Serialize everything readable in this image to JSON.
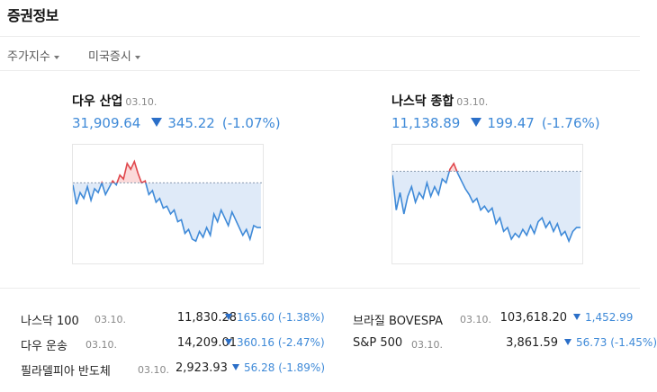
{
  "header": {
    "title": "증권정보"
  },
  "tabs": [
    {
      "label": "주가지수"
    },
    {
      "label": "미국증시"
    }
  ],
  "cards": [
    {
      "name": "다우 산업",
      "date": "03.10.",
      "value": "31,909.64",
      "change": "345.22",
      "percent": "(-1.07%)"
    },
    {
      "name": "나스닥 종합",
      "date": "03.10.",
      "value": "11,138.89",
      "change": "199.47",
      "percent": "(-1.76%)"
    }
  ],
  "list": [
    {
      "name": "나스닥 100",
      "date": "03.10.",
      "value": "11,830.28",
      "change": "165.60",
      "percent": "(-1.38%)"
    },
    {
      "name": "다우 운송",
      "date": "03.10.",
      "value": "14,209.01",
      "change": "360.16",
      "percent": "(-2.47%)"
    },
    {
      "name": "필라델피아 반도체",
      "date": "03.10.",
      "value": "2,923.93",
      "change": "56.28",
      "percent": "(-1.89%)"
    },
    {
      "name": "브라질 BOVESPA",
      "date": "03.10.",
      "value": "103,618.20",
      "change": "1,452.99",
      "percent": ""
    },
    {
      "name": "S&P 500",
      "date": "03.10.",
      "value": "3,861.59",
      "change": "56.73",
      "percent": "(-1.45%)"
    }
  ],
  "colors": {
    "up": "#e0474c",
    "down": "#3f8ad8",
    "fill_down": "#dfeaf8",
    "fill_up": "#fbdada"
  }
}
